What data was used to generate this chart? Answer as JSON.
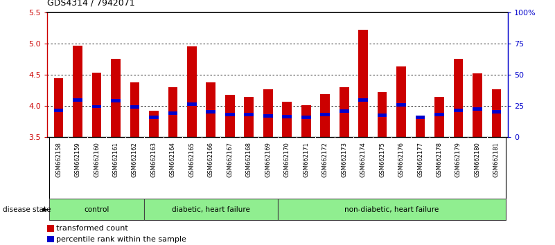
{
  "title": "GDS4314 / 7942071",
  "samples": [
    "GSM662158",
    "GSM662159",
    "GSM662160",
    "GSM662161",
    "GSM662162",
    "GSM662163",
    "GSM662164",
    "GSM662165",
    "GSM662166",
    "GSM662167",
    "GSM662168",
    "GSM662169",
    "GSM662170",
    "GSM662171",
    "GSM662172",
    "GSM662173",
    "GSM662174",
    "GSM662175",
    "GSM662176",
    "GSM662177",
    "GSM662178",
    "GSM662179",
    "GSM662180",
    "GSM662181"
  ],
  "red_values": [
    4.44,
    4.97,
    4.53,
    4.75,
    4.38,
    3.92,
    4.3,
    4.95,
    4.38,
    4.18,
    4.14,
    4.27,
    4.07,
    4.01,
    4.19,
    4.3,
    5.22,
    4.22,
    4.63,
    3.82,
    4.14,
    4.75,
    4.52,
    4.27
  ],
  "blue_values": [
    3.93,
    4.1,
    3.99,
    4.08,
    3.98,
    3.82,
    3.88,
    4.03,
    3.91,
    3.86,
    3.86,
    3.84,
    3.83,
    3.82,
    3.86,
    3.92,
    4.1,
    3.85,
    4.02,
    3.82,
    3.86,
    3.93,
    3.95,
    3.91
  ],
  "group_starts": [
    -0.5,
    4.5,
    11.5
  ],
  "group_ends": [
    4.5,
    11.5,
    23.5
  ],
  "group_labels": [
    "control",
    "diabetic, heart failure",
    "non-diabetic, heart failure"
  ],
  "group_color": "#90EE90",
  "ylim_left": [
    3.5,
    5.5
  ],
  "ylim_right": [
    0,
    100
  ],
  "left_ticks": [
    3.5,
    4.0,
    4.5,
    5.0,
    5.5
  ],
  "right_ticks": [
    0,
    25,
    50,
    75,
    100
  ],
  "right_tick_labels": [
    "0",
    "25",
    "50",
    "75",
    "100%"
  ],
  "bar_width": 0.5,
  "bar_color": "#CC0000",
  "blue_color": "#0000CC",
  "bg_color": "#FFFFFF",
  "col_bg_color": "#C8C8C8",
  "axis_color_left": "#CC0000",
  "axis_color_right": "#0000CC",
  "title_color": "#000000",
  "grid_levels": [
    4.0,
    4.5,
    5.0
  ]
}
